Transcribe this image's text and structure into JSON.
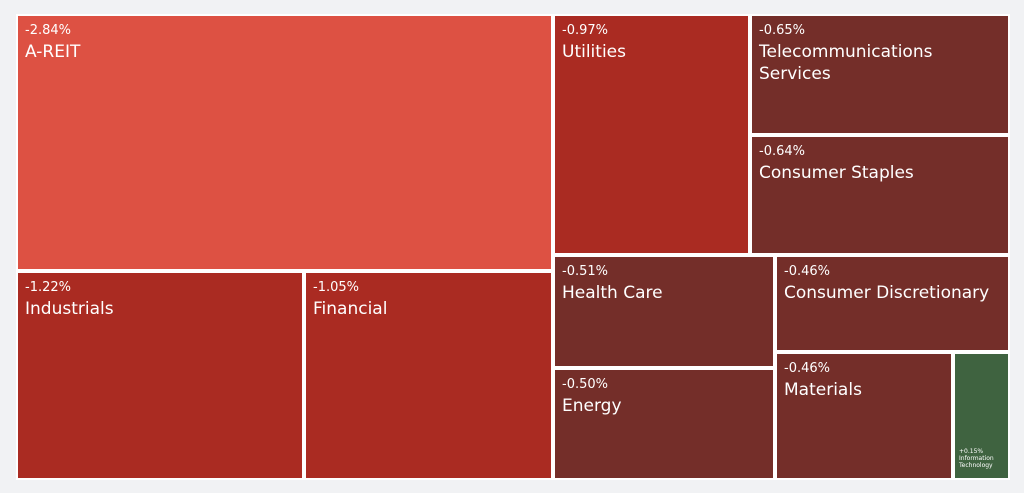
{
  "chart_data": {
    "type": "treemap",
    "title": "",
    "items": [
      {
        "name": "A-REIT",
        "change": "-2.84%",
        "value": -2.84,
        "color": "#dd5143"
      },
      {
        "name": "Utilities",
        "change": "-0.97%",
        "value": -0.97,
        "color": "#aa2b22"
      },
      {
        "name": "Telecommunications Services",
        "change": "-0.65%",
        "value": -0.65,
        "color": "#742e29"
      },
      {
        "name": "Consumer Staples",
        "change": "-0.64%",
        "value": -0.64,
        "color": "#742e29"
      },
      {
        "name": "Industrials",
        "change": "-1.22%",
        "value": -1.22,
        "color": "#aa2b22"
      },
      {
        "name": "Financial",
        "change": "-1.05%",
        "value": -1.05,
        "color": "#aa2b22"
      },
      {
        "name": "Health Care",
        "change": "-0.51%",
        "value": -0.51,
        "color": "#742e29"
      },
      {
        "name": "Consumer Discretionary",
        "change": "-0.46%",
        "value": -0.46,
        "color": "#742e29"
      },
      {
        "name": "Energy",
        "change": "-0.50%",
        "value": -0.5,
        "color": "#742e29"
      },
      {
        "name": "Materials",
        "change": "-0.46%",
        "value": -0.46,
        "color": "#742e29"
      },
      {
        "name": "Information Technology",
        "change": "+0.15%",
        "value": 0.15,
        "color": "#3f6340"
      }
    ]
  }
}
